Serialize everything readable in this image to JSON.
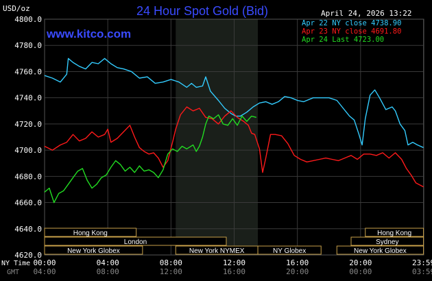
{
  "header": {
    "unit": "USD/oz",
    "title": "24 Hour Spot Gold (Bid)",
    "datetime": "April 24, 2026 13:22",
    "site": "www.kitco.com"
  },
  "colors": {
    "background": "#000000",
    "title": "#3a4bff",
    "site": "#3a4bff",
    "grid": "#3a3a3a",
    "axis_text": "#ffffff",
    "session_shade": "#1a1f1a",
    "market_box": "#c8a14a",
    "market_text": "#ffffff"
  },
  "chart_data": {
    "type": "line",
    "ylim": [
      4620,
      4800
    ],
    "xlim": [
      0,
      24
    ],
    "grid": true,
    "legend_position": "top-right",
    "yticks": [
      "4800.0",
      "4780.0",
      "4760.0",
      "4740.0",
      "4720.0",
      "4700.0",
      "4680.0",
      "4660.0",
      "4640.0",
      "4620.0"
    ],
    "ytick_values": [
      4800,
      4780,
      4760,
      4740,
      4720,
      4700,
      4680,
      4660,
      4640,
      4620
    ],
    "xticks_ny": [
      "00:00",
      "04:00",
      "08:00",
      "12:00",
      "16:00",
      "20:00",
      "23:59"
    ],
    "xticks_gmt": [
      "04:00",
      "08:00",
      "12:00",
      "16:00",
      "20:00",
      "00:00",
      "03:59"
    ],
    "xtick_hours": [
      0,
      4,
      8,
      12,
      16,
      20,
      23.98
    ],
    "x_axis_labels": {
      "ny": "NY Time",
      "gmt": "GMT"
    },
    "shaded_session": [
      8.3,
      13.5
    ],
    "series": [
      {
        "name": "Apr 22 NY close 4738.90",
        "color": "#33ccff",
        "points": [
          [
            0,
            4757
          ],
          [
            0.5,
            4755
          ],
          [
            1,
            4752
          ],
          [
            1.4,
            4758
          ],
          [
            1.5,
            4770
          ],
          [
            1.8,
            4767
          ],
          [
            2.2,
            4764
          ],
          [
            2.6,
            4762
          ],
          [
            3,
            4767
          ],
          [
            3.4,
            4766
          ],
          [
            3.8,
            4770
          ],
          [
            4.2,
            4766
          ],
          [
            4.6,
            4763
          ],
          [
            5,
            4762
          ],
          [
            5.5,
            4760
          ],
          [
            6,
            4755
          ],
          [
            6.5,
            4756
          ],
          [
            7,
            4751
          ],
          [
            7.5,
            4752
          ],
          [
            8,
            4754
          ],
          [
            8.5,
            4752
          ],
          [
            9,
            4748
          ],
          [
            9.3,
            4751
          ],
          [
            9.6,
            4748
          ],
          [
            10,
            4749
          ],
          [
            10.2,
            4756
          ],
          [
            10.5,
            4745
          ],
          [
            11,
            4738
          ],
          [
            11.4,
            4732
          ],
          [
            11.8,
            4728
          ],
          [
            12.1,
            4726
          ],
          [
            12.4,
            4726
          ],
          [
            12.8,
            4729
          ],
          [
            13.2,
            4733
          ],
          [
            13.6,
            4736
          ],
          [
            14,
            4737
          ],
          [
            14.4,
            4735
          ],
          [
            14.8,
            4737
          ],
          [
            15.2,
            4741
          ],
          [
            15.6,
            4740
          ],
          [
            16,
            4738
          ],
          [
            16.4,
            4737
          ],
          [
            17,
            4740
          ],
          [
            17.5,
            4740
          ],
          [
            18,
            4740
          ],
          [
            18.5,
            4738
          ],
          [
            18.9,
            4732
          ],
          [
            19.3,
            4726
          ],
          [
            19.6,
            4723
          ],
          [
            19.9,
            4712
          ],
          [
            20.1,
            4704
          ],
          [
            20.3,
            4724
          ],
          [
            20.6,
            4742
          ],
          [
            20.9,
            4746
          ],
          [
            21.2,
            4740
          ],
          [
            21.6,
            4731
          ],
          [
            22,
            4733
          ],
          [
            22.2,
            4730
          ],
          [
            22.5,
            4720
          ],
          [
            22.8,
            4715
          ],
          [
            23,
            4704
          ],
          [
            23.3,
            4706
          ],
          [
            23.6,
            4704
          ],
          [
            23.98,
            4702
          ]
        ]
      },
      {
        "name": "Apr 23 NY close 4691.80",
        "color": "#ff1a1a",
        "points": [
          [
            0,
            4703
          ],
          [
            0.5,
            4700
          ],
          [
            1,
            4704
          ],
          [
            1.4,
            4706
          ],
          [
            1.8,
            4712
          ],
          [
            2.2,
            4707
          ],
          [
            2.6,
            4709
          ],
          [
            3,
            4714
          ],
          [
            3.4,
            4710
          ],
          [
            3.8,
            4712
          ],
          [
            4,
            4716
          ],
          [
            4.2,
            4706
          ],
          [
            4.6,
            4709
          ],
          [
            5,
            4714
          ],
          [
            5.4,
            4719
          ],
          [
            5.7,
            4710
          ],
          [
            6,
            4702
          ],
          [
            6.3,
            4699
          ],
          [
            6.6,
            4697
          ],
          [
            6.9,
            4698
          ],
          [
            7.2,
            4694
          ],
          [
            7.5,
            4687
          ],
          [
            7.8,
            4692
          ],
          [
            8.1,
            4706
          ],
          [
            8.3,
            4716
          ],
          [
            8.6,
            4727
          ],
          [
            9,
            4733
          ],
          [
            9.4,
            4730
          ],
          [
            9.8,
            4732
          ],
          [
            10.2,
            4725
          ],
          [
            10.6,
            4724
          ],
          [
            11,
            4720
          ],
          [
            11.4,
            4726
          ],
          [
            11.8,
            4730
          ],
          [
            12.2,
            4725
          ],
          [
            12.6,
            4722
          ],
          [
            12.9,
            4719
          ],
          [
            13.1,
            4713
          ],
          [
            13.3,
            4712
          ],
          [
            13.6,
            4701
          ],
          [
            13.8,
            4683
          ],
          [
            14,
            4694
          ],
          [
            14.3,
            4712
          ],
          [
            14.6,
            4712
          ],
          [
            15,
            4711
          ],
          [
            15.4,
            4705
          ],
          [
            15.8,
            4696
          ],
          [
            16.2,
            4693
          ],
          [
            16.6,
            4691
          ],
          [
            17,
            4692
          ],
          [
            17.4,
            4693
          ],
          [
            17.8,
            4694
          ],
          [
            18.2,
            4693
          ],
          [
            18.6,
            4692
          ],
          [
            19,
            4694
          ],
          [
            19.4,
            4696
          ],
          [
            19.8,
            4693
          ],
          [
            20.2,
            4697
          ],
          [
            20.6,
            4697
          ],
          [
            21,
            4696
          ],
          [
            21.4,
            4698
          ],
          [
            21.8,
            4694
          ],
          [
            22.2,
            4698
          ],
          [
            22.6,
            4693
          ],
          [
            22.9,
            4686
          ],
          [
            23.2,
            4681
          ],
          [
            23.5,
            4675
          ],
          [
            23.98,
            4672
          ]
        ]
      },
      {
        "name": "Apr 24 Last 4723.00",
        "color": "#22dd22",
        "points": [
          [
            0,
            4668
          ],
          [
            0.3,
            4671
          ],
          [
            0.6,
            4660
          ],
          [
            0.9,
            4667
          ],
          [
            1.2,
            4669
          ],
          [
            1.5,
            4674
          ],
          [
            1.8,
            4679
          ],
          [
            2.1,
            4684
          ],
          [
            2.4,
            4686
          ],
          [
            2.7,
            4677
          ],
          [
            3,
            4671
          ],
          [
            3.3,
            4674
          ],
          [
            3.6,
            4679
          ],
          [
            3.9,
            4681
          ],
          [
            4.2,
            4687
          ],
          [
            4.5,
            4692
          ],
          [
            4.8,
            4689
          ],
          [
            5.1,
            4684
          ],
          [
            5.4,
            4687
          ],
          [
            5.7,
            4683
          ],
          [
            6,
            4688
          ],
          [
            6.3,
            4684
          ],
          [
            6.6,
            4685
          ],
          [
            6.9,
            4683
          ],
          [
            7.2,
            4679
          ],
          [
            7.5,
            4685
          ],
          [
            7.8,
            4697
          ],
          [
            8.1,
            4701
          ],
          [
            8.4,
            4699
          ],
          [
            8.7,
            4703
          ],
          [
            9,
            4701
          ],
          [
            9.4,
            4704
          ],
          [
            9.6,
            4699
          ],
          [
            9.8,
            4703
          ],
          [
            10,
            4710
          ],
          [
            10.2,
            4720
          ],
          [
            10.4,
            4726
          ],
          [
            10.7,
            4724
          ],
          [
            11,
            4727
          ],
          [
            11.3,
            4720
          ],
          [
            11.6,
            4719
          ],
          [
            11.9,
            4724
          ],
          [
            12.2,
            4719
          ],
          [
            12.5,
            4726
          ],
          [
            12.8,
            4722
          ],
          [
            13.1,
            4726
          ],
          [
            13.4,
            4725
          ]
        ]
      }
    ]
  },
  "markets": [
    {
      "name": "Hong Kong",
      "start": 0,
      "end": 5.8,
      "row": 0
    },
    {
      "name": "London",
      "start": 0,
      "end": 11.5,
      "row": 1
    },
    {
      "name": "New York Globex",
      "start": 0,
      "end": 6.2,
      "row": 2
    },
    {
      "name": "New York NYMEX",
      "start": 8.3,
      "end": 13.5,
      "row": 2
    },
    {
      "name": "NY Globex",
      "start": 13.5,
      "end": 17.5,
      "row": 2
    },
    {
      "name": "Hong Kong",
      "start": 20.3,
      "end": 23.98,
      "row": 0
    },
    {
      "name": "Sydney",
      "start": 19.4,
      "end": 23.98,
      "row": 1
    },
    {
      "name": "New York Globex",
      "start": 18.5,
      "end": 23.98,
      "row": 2
    }
  ]
}
